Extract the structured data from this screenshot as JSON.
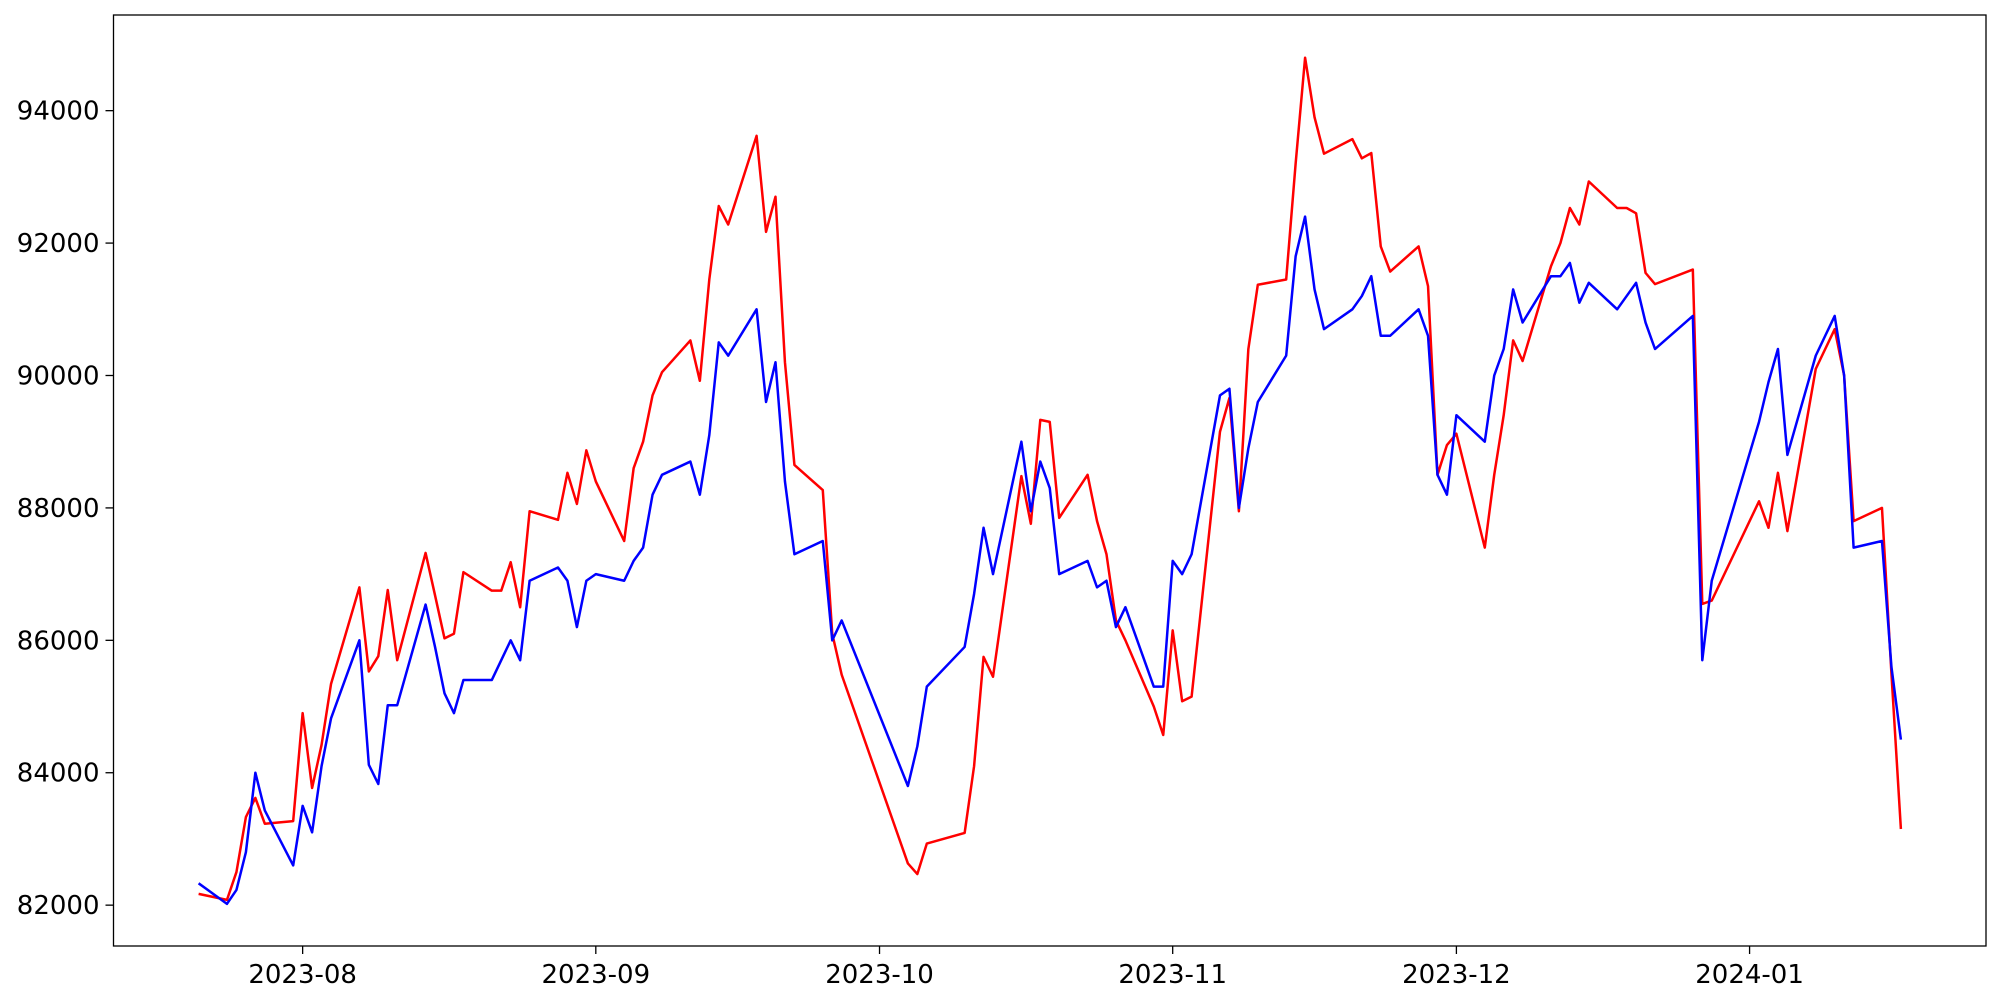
{
  "chart_data": {
    "type": "line",
    "x": [
      "2023-07-21",
      "2023-07-24",
      "2023-07-25",
      "2023-07-26",
      "2023-07-27",
      "2023-07-28",
      "2023-07-31",
      "2023-08-01",
      "2023-08-02",
      "2023-08-03",
      "2023-08-04",
      "2023-08-07",
      "2023-08-08",
      "2023-08-09",
      "2023-08-10",
      "2023-08-11",
      "2023-08-14",
      "2023-08-15",
      "2023-08-16",
      "2023-08-17",
      "2023-08-18",
      "2023-08-21",
      "2023-08-22",
      "2023-08-23",
      "2023-08-24",
      "2023-08-25",
      "2023-08-28",
      "2023-08-29",
      "2023-08-30",
      "2023-08-31",
      "2023-09-01",
      "2023-09-04",
      "2023-09-05",
      "2023-09-06",
      "2023-09-07",
      "2023-09-08",
      "2023-09-11",
      "2023-09-12",
      "2023-09-13",
      "2023-09-14",
      "2023-09-15",
      "2023-09-18",
      "2023-09-19",
      "2023-09-20",
      "2023-09-21",
      "2023-09-22",
      "2023-09-25",
      "2023-09-26",
      "2023-09-27",
      "2023-10-04",
      "2023-10-05",
      "2023-10-06",
      "2023-10-10",
      "2023-10-11",
      "2023-10-12",
      "2023-10-13",
      "2023-10-16",
      "2023-10-17",
      "2023-10-18",
      "2023-10-19",
      "2023-10-20",
      "2023-10-23",
      "2023-10-24",
      "2023-10-25",
      "2023-10-26",
      "2023-10-27",
      "2023-10-30",
      "2023-10-31",
      "2023-11-01",
      "2023-11-02",
      "2023-11-03",
      "2023-11-06",
      "2023-11-07",
      "2023-11-08",
      "2023-11-09",
      "2023-11-10",
      "2023-11-13",
      "2023-11-14",
      "2023-11-15",
      "2023-11-16",
      "2023-11-17",
      "2023-11-20",
      "2023-11-21",
      "2023-11-22",
      "2023-11-23",
      "2023-11-24",
      "2023-11-27",
      "2023-11-28",
      "2023-11-29",
      "2023-11-30",
      "2023-12-01",
      "2023-12-04",
      "2023-12-05",
      "2023-12-06",
      "2023-12-07",
      "2023-12-08",
      "2023-12-11",
      "2023-12-12",
      "2023-12-13",
      "2023-12-14",
      "2023-12-15",
      "2023-12-18",
      "2023-12-19",
      "2023-12-20",
      "2023-12-21",
      "2023-12-22",
      "2023-12-26",
      "2023-12-27",
      "2023-12-28",
      "2024-01-02",
      "2024-01-03",
      "2024-01-04",
      "2024-01-05",
      "2024-01-08",
      "2024-01-09",
      "2024-01-10",
      "2024-01-11",
      "2024-01-12",
      "2024-01-15",
      "2024-01-16",
      "2024-01-17"
    ],
    "series": [
      {
        "color": "#ff0000",
        "values": [
          82170,
          82080,
          82500,
          83330,
          83620,
          83230,
          83270,
          84900,
          83770,
          84420,
          85340,
          86800,
          85530,
          85760,
          86760,
          85700,
          87320,
          86680,
          86030,
          86100,
          87030,
          86750,
          86750,
          87180,
          86500,
          87950,
          87820,
          88530,
          88060,
          88870,
          88400,
          87500,
          88600,
          89000,
          89700,
          90050,
          90530,
          89920,
          91450,
          92560,
          92280,
          93620,
          92170,
          92700,
          90200,
          88650,
          88270,
          86100,
          85480,
          82630,
          82470,
          82930,
          83090,
          84100,
          85750,
          85450,
          88480,
          87760,
          89330,
          89300,
          87850,
          88500,
          87800,
          87300,
          86300,
          86000,
          85000,
          84570,
          86150,
          85080,
          85150,
          89150,
          89660,
          87950,
          90400,
          91370,
          91450,
          93200,
          94800,
          93900,
          93350,
          93570,
          93280,
          93360,
          91950,
          91570,
          91950,
          91350,
          88500,
          88950,
          89120,
          87400,
          88500,
          89400,
          90530,
          90220,
          91650,
          92000,
          92530,
          92280,
          92930,
          92530,
          92530,
          92450,
          91550,
          91380,
          91600,
          86550,
          86600,
          88100,
          87700,
          88530,
          87650,
          90100,
          90400,
          90700,
          90000,
          87800,
          88000,
          85500,
          83150
        ]
      },
      {
        "color": "#0000ff",
        "values": [
          82330,
          82020,
          82230,
          82800,
          84000,
          83430,
          82600,
          83500,
          83100,
          84100,
          84820,
          86000,
          84120,
          83830,
          85020,
          85020,
          86540,
          85900,
          85200,
          84900,
          85400,
          85400,
          85700,
          86000,
          85700,
          86900,
          87100,
          86900,
          86200,
          86900,
          87000,
          86900,
          87200,
          87400,
          88200,
          88500,
          88700,
          88200,
          89100,
          90500,
          90300,
          91000,
          89600,
          90200,
          88400,
          87300,
          87500,
          86000,
          86300,
          83800,
          84400,
          85300,
          85900,
          86700,
          87700,
          87000,
          89000,
          87950,
          88700,
          88300,
          87000,
          87200,
          86800,
          86900,
          86200,
          86500,
          85300,
          85300,
          87200,
          87000,
          87300,
          89700,
          89800,
          88000,
          88900,
          89600,
          90300,
          91800,
          92400,
          91300,
          90700,
          91000,
          91200,
          91500,
          90600,
          90600,
          91000,
          90600,
          88500,
          88200,
          89400,
          89000,
          90000,
          90400,
          91300,
          90800,
          91500,
          91500,
          91700,
          91100,
          91400,
          91000,
          91200,
          91400,
          90800,
          90400,
          90900,
          85700,
          86900,
          89300,
          89900,
          90400,
          88800,
          90300,
          90600,
          90900,
          90000,
          87400,
          87500,
          85600,
          84500
        ]
      }
    ],
    "xlim": [
      "2023-07-12",
      "2024-01-26"
    ],
    "xticks": [
      {
        "value": "2023-08-01",
        "label": "2023-08"
      },
      {
        "value": "2023-09-01",
        "label": "2023-09"
      },
      {
        "value": "2023-10-01",
        "label": "2023-10"
      },
      {
        "value": "2023-11-01",
        "label": "2023-11"
      },
      {
        "value": "2023-12-01",
        "label": "2023-12"
      },
      {
        "value": "2024-01-01",
        "label": "2024-01"
      }
    ],
    "ylim": [
      81383,
      95445
    ],
    "yticks": [
      82000,
      84000,
      86000,
      88000,
      90000,
      92000,
      94000
    ],
    "grid": false
  }
}
